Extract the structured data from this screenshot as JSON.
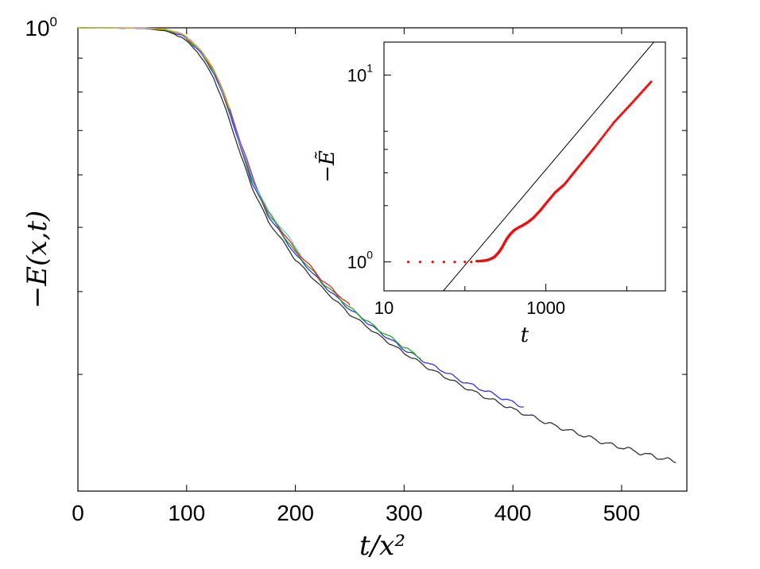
{
  "chart_data": [
    {
      "type": "line",
      "xlabel": "t/x²",
      "ylabel": "−E(x,t)",
      "xlim": [
        0,
        560
      ],
      "ylim": [
        0.2,
        1.0
      ],
      "yscale": "log",
      "x_ticks": [
        {
          "value": 0,
          "label": "0"
        },
        {
          "value": 100,
          "label": "100"
        },
        {
          "value": 200,
          "label": "200"
        },
        {
          "value": 300,
          "label": "300"
        },
        {
          "value": 400,
          "label": "400"
        },
        {
          "value": 500,
          "label": "500"
        }
      ],
      "y_ticks": [
        {
          "value": 1,
          "base": "10",
          "exp": "0"
        }
      ],
      "series": [
        {
          "color": "#333333",
          "x": [
            0,
            60,
            80,
            95,
            110,
            125,
            140,
            150,
            160,
            175,
            200,
            225,
            250,
            275,
            300,
            325,
            350,
            375,
            400,
            430,
            460,
            490,
            520,
            550
          ],
          "y": [
            1.0,
            0.998,
            0.99,
            0.97,
            0.92,
            0.84,
            0.72,
            0.64,
            0.575,
            0.51,
            0.447,
            0.404,
            0.37,
            0.345,
            0.323,
            0.305,
            0.29,
            0.277,
            0.266,
            0.254,
            0.244,
            0.235,
            0.228,
            0.221
          ]
        },
        {
          "color": "#3333ee",
          "x": [
            0,
            60,
            80,
            95,
            110,
            125,
            140,
            150,
            160,
            175,
            200,
            225,
            250,
            275,
            300,
            325,
            350,
            375,
            410
          ],
          "y": [
            1.0,
            0.999,
            0.993,
            0.975,
            0.93,
            0.855,
            0.74,
            0.655,
            0.585,
            0.52,
            0.455,
            0.41,
            0.376,
            0.35,
            0.327,
            0.31,
            0.295,
            0.283,
            0.268
          ]
        },
        {
          "color": "#22aa22",
          "x": [
            0,
            60,
            80,
            95,
            110,
            125,
            140,
            150,
            160,
            175,
            200,
            225,
            250,
            275,
            300,
            315
          ],
          "y": [
            1.0,
            0.999,
            0.994,
            0.977,
            0.933,
            0.86,
            0.745,
            0.66,
            0.59,
            0.524,
            0.458,
            0.413,
            0.378,
            0.352,
            0.33,
            0.318
          ]
        },
        {
          "color": "#ee2222",
          "x": [
            0,
            60,
            80,
            95,
            110,
            125,
            140,
            150,
            160,
            175,
            200,
            225,
            250
          ],
          "y": [
            1.0,
            0.999,
            0.995,
            0.978,
            0.935,
            0.862,
            0.748,
            0.663,
            0.593,
            0.527,
            0.462,
            0.416,
            0.381
          ]
        },
        {
          "color": "#44ddcc",
          "x": [
            0,
            60,
            80,
            95,
            110,
            125,
            140,
            150,
            160,
            175,
            205
          ],
          "y": [
            1.0,
            0.999,
            0.995,
            0.979,
            0.936,
            0.864,
            0.75,
            0.665,
            0.595,
            0.529,
            0.455
          ]
        },
        {
          "color": "#9933ee",
          "x": [
            0,
            60,
            80,
            95,
            110,
            125,
            140,
            150,
            165
          ],
          "y": [
            1.0,
            0.999,
            0.996,
            0.98,
            0.937,
            0.866,
            0.752,
            0.667,
            0.57
          ]
        },
        {
          "color": "#cccc22",
          "x": [
            0,
            60,
            80,
            95,
            110,
            125,
            140
          ],
          "y": [
            1.0,
            0.999,
            0.996,
            0.981,
            0.938,
            0.868,
            0.755
          ]
        }
      ]
    },
    {
      "type": "line",
      "xlabel": "t",
      "ylabel": "−Ẽ",
      "xscale": "log",
      "yscale": "log",
      "xlim": [
        10,
        30000
      ],
      "ylim": [
        0.7,
        15
      ],
      "x_ticks": [
        {
          "value": 10,
          "label": "10"
        },
        {
          "value": 1000,
          "label": "1000"
        }
      ],
      "y_ticks": [
        {
          "value": 1,
          "base": "10",
          "exp": "0"
        },
        {
          "value": 10,
          "base": "10",
          "exp": "1"
        }
      ],
      "series": [
        {
          "color": "#ee1111",
          "style": "points",
          "x": [
            20,
            28,
            40,
            55,
            75,
            100,
            120,
            140,
            155,
            170,
            185,
            200,
            215,
            230,
            245,
            260,
            275,
            290,
            310,
            330,
            360,
            400,
            450,
            520,
            600,
            700,
            850,
            1000,
            1300,
            1700,
            2500,
            4000,
            7000,
            12000,
            20000
          ],
          "y": [
            1.0,
            1.0,
            1.0,
            1.0,
            1.0,
            1.0,
            1.0,
            1.01,
            1.01,
            1.015,
            1.02,
            1.03,
            1.045,
            1.06,
            1.09,
            1.12,
            1.16,
            1.2,
            1.27,
            1.33,
            1.4,
            1.47,
            1.52,
            1.57,
            1.63,
            1.72,
            1.88,
            2.05,
            2.35,
            2.6,
            3.2,
            4.1,
            5.6,
            7.2,
            9.2
          ]
        },
        {
          "color": "#000000",
          "style": "line",
          "x": [
            40,
            26000
          ],
          "y": [
            0.6,
            16.5
          ]
        }
      ]
    }
  ]
}
